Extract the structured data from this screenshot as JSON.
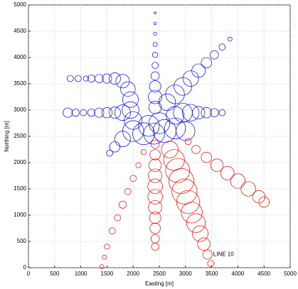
{
  "chart_data": {
    "type": "scatter",
    "xlabel": "Easting [m]",
    "ylabel": "Northing [m]",
    "annotation": {
      "text": "LINE 10",
      "x": 3530,
      "y": 250
    },
    "xlim": [
      0,
      5000
    ],
    "ylim": [
      0,
      5000
    ],
    "xticks": [
      0,
      500,
      1000,
      1500,
      2000,
      2500,
      3000,
      3500,
      4000,
      4500,
      5000
    ],
    "yticks": [
      0,
      500,
      1000,
      1500,
      2000,
      2500,
      3000,
      3500,
      4000,
      4500,
      5000
    ],
    "grid": true,
    "series": [
      {
        "color": "#0000ff",
        "x": [
          2420,
          2420,
          2420,
          2420,
          2420,
          2420,
          2420,
          2420,
          2420,
          2420,
          3850,
          3700,
          3550,
          3400,
          3250,
          3100,
          2950,
          2800,
          2650,
          3700,
          3550,
          3400,
          3250,
          3100,
          2950,
          2800,
          800,
          950,
          1100,
          1200,
          1350,
          1500,
          1650,
          1800,
          1900,
          1950,
          1950,
          2000,
          750,
          900,
          1050,
          1200,
          1350,
          1500,
          1650,
          1800,
          2000,
          2200,
          2400,
          2600,
          2800,
          3000,
          2500,
          2300,
          1800,
          1650,
          1550
        ],
        "y": [
          4850,
          4650,
          4450,
          4250,
          4050,
          3850,
          3650,
          3450,
          3250,
          3050,
          4350,
          4200,
          4050,
          3900,
          3750,
          3600,
          3450,
          3300,
          3150,
          2950,
          2950,
          2950,
          2950,
          2950,
          2950,
          2900,
          3600,
          3600,
          3600,
          3600,
          3600,
          3600,
          3600,
          3550,
          3400,
          3200,
          3000,
          2800,
          2950,
          2950,
          2950,
          2950,
          2950,
          2950,
          2950,
          2950,
          2600,
          2550,
          2550,
          2600,
          2650,
          2600,
          2750,
          2700,
          2450,
          2300,
          2180
        ],
        "sizes": [
          20,
          25,
          30,
          40,
          50,
          60,
          80,
          110,
          130,
          120,
          40,
          60,
          80,
          100,
          130,
          150,
          170,
          180,
          160,
          60,
          80,
          100,
          120,
          160,
          180,
          170,
          60,
          60,
          50,
          70,
          80,
          90,
          110,
          130,
          140,
          150,
          160,
          170,
          90,
          70,
          60,
          70,
          90,
          100,
          110,
          150,
          200,
          210,
          200,
          220,
          200,
          180,
          200,
          200,
          150,
          100,
          60
        ]
      },
      {
        "color": "#ff0000",
        "x": [
          2200,
          2100,
          2000,
          1900,
          1800,
          1700,
          1600,
          1500,
          1450,
          1400,
          2420,
          2420,
          2420,
          2420,
          2420,
          2420,
          2420,
          2420,
          2420,
          2420,
          2420,
          2700,
          2780,
          2850,
          2920,
          2980,
          3050,
          3120,
          3200,
          3280,
          3350,
          3420,
          3480,
          3050,
          3200,
          3400,
          3600,
          3800,
          4000,
          4200,
          4400,
          4500
        ],
        "y": [
          2200,
          1950,
          1700,
          1450,
          1200,
          950,
          700,
          400,
          200,
          20,
          2350,
          2150,
          1950,
          1750,
          1550,
          1350,
          1150,
          950,
          750,
          550,
          400,
          2250,
          2050,
          1850,
          1650,
          1450,
          1250,
          1050,
          850,
          650,
          450,
          250,
          80,
          2400,
          2250,
          2100,
          1950,
          1800,
          1650,
          1500,
          1350,
          1250
        ],
        "sizes": [
          50,
          50,
          60,
          60,
          70,
          60,
          60,
          50,
          40,
          40,
          80,
          100,
          120,
          130,
          140,
          140,
          130,
          110,
          100,
          80,
          70,
          160,
          200,
          230,
          240,
          240,
          220,
          200,
          180,
          150,
          120,
          90,
          60,
          60,
          80,
          100,
          120,
          130,
          140,
          140,
          120,
          100
        ]
      }
    ]
  }
}
